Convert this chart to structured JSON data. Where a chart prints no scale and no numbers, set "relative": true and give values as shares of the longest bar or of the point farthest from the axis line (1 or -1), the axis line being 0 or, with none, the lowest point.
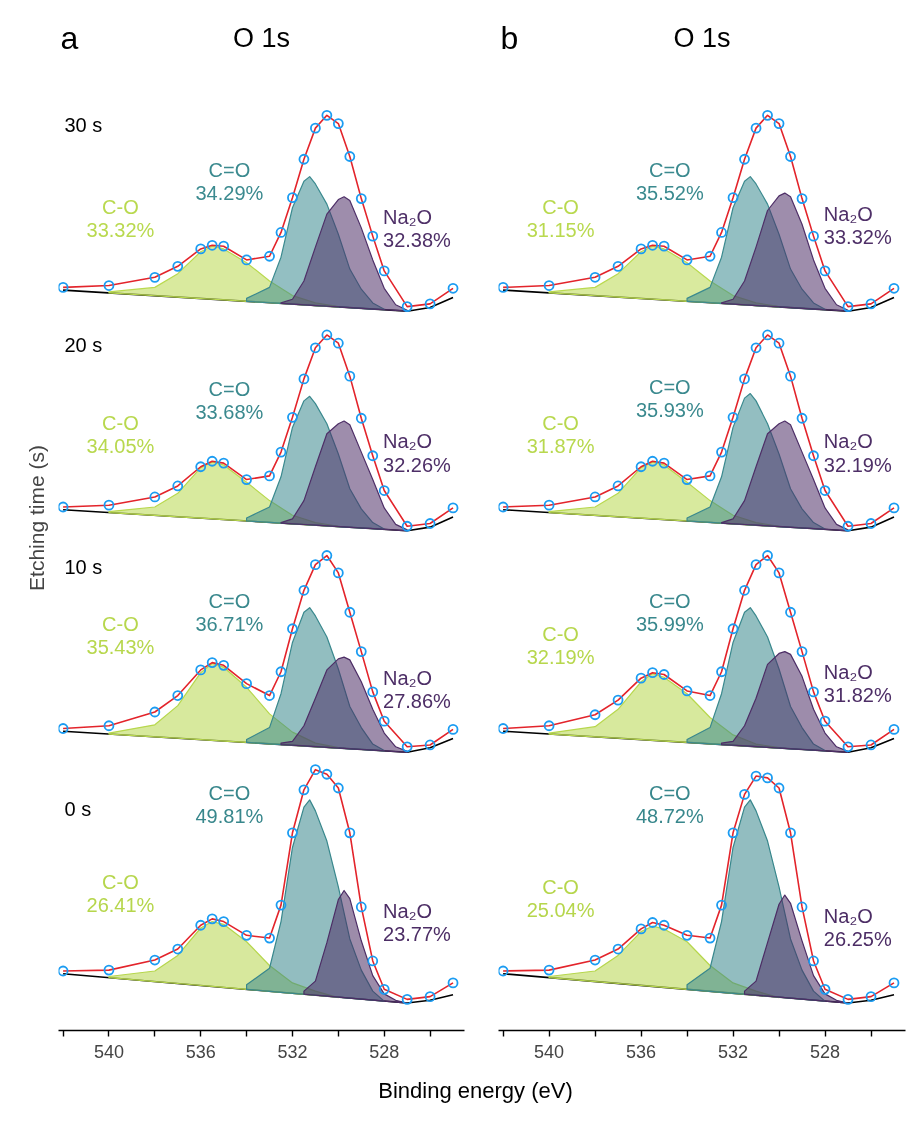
{
  "chart_data": [
    {
      "type": "line",
      "relative": true,
      "title": "O 1s",
      "xlabel": "Binding energy (eV)",
      "ylabel": "Etching time (s)",
      "xlim": [
        542.2,
        524.5
      ],
      "xticks": [
        {
          "value": 542,
          "label": null
        },
        540,
        {
          "value": 538,
          "label": null
        },
        536,
        {
          "value": 534,
          "label": null
        },
        532,
        {
          "value": 530,
          "label": null
        },
        528,
        {
          "value": 526,
          "label": null
        }
      ],
      "tick_labels": "x",
      "annotations": [
        "a",
        "30 s",
        "20 s",
        "10 s",
        "0 s"
      ],
      "series": [
        {
          "color": "#000000",
          "x": [
            542,
            527,
            526,
            525
          ],
          "values": [
            0.809,
            0.786,
            0.79,
            0.801
          ]
        },
        {
          "type": "area",
          "name": "C-O\n33.32%",
          "color": "#b9d94f",
          "x": [
            540,
            538,
            537,
            536,
            535.5,
            535,
            534,
            533,
            532,
            531,
            530
          ],
          "values": [
            0.807,
            0.812,
            0.827,
            0.851,
            0.857,
            0.854,
            0.839,
            0.819,
            0.803,
            0.795,
            0.791
          ]
        },
        {
          "type": "area",
          "name": "C=O\n34.29%",
          "color": "#3b8a8f",
          "x": [
            534,
            533,
            532.5,
            532,
            531.5,
            531.25,
            531,
            530.5,
            530,
            529.5,
            529,
            528.5,
            528
          ],
          "values": [
            0.8,
            0.812,
            0.845,
            0.899,
            0.928,
            0.933,
            0.925,
            0.903,
            0.87,
            0.832,
            0.81,
            0.795,
            0.788
          ]
        },
        {
          "type": "area",
          "name": "Na₂O\n32.38%",
          "color": "#4f3068",
          "x": [
            532.5,
            532,
            531.5,
            531,
            530.5,
            530,
            529.75,
            529.5,
            529,
            528.5,
            528,
            527.5,
            527
          ],
          "values": [
            0.795,
            0.799,
            0.819,
            0.856,
            0.892,
            0.908,
            0.911,
            0.907,
            0.877,
            0.842,
            0.811,
            0.793,
            0.787
          ]
        },
        {
          "color": "#e3242b",
          "x": [
            542,
            540,
            538,
            537,
            536,
            535.5,
            535,
            534,
            533,
            532.5,
            532,
            531.5,
            531,
            530.5,
            530,
            529.5,
            529,
            528.5,
            528,
            527,
            526,
            525
          ],
          "values": [
            0.812,
            0.814,
            0.823,
            0.835,
            0.854,
            0.858,
            0.857,
            0.842,
            0.846,
            0.872,
            0.91,
            0.952,
            0.986,
            1.0,
            0.991,
            0.955,
            0.909,
            0.868,
            0.83,
            0.791,
            0.794,
            0.811
          ]
        },
        {
          "type": "scatter",
          "color": "#1b9cf2",
          "x": [
            542,
            540,
            538,
            537,
            536,
            535.5,
            535,
            534,
            533,
            532.5,
            532,
            531.5,
            531,
            530.5,
            530,
            529.5,
            529,
            528.5,
            528,
            527,
            526,
            525
          ],
          "values": [
            0.812,
            0.814,
            0.823,
            0.835,
            0.854,
            0.858,
            0.857,
            0.842,
            0.846,
            0.872,
            0.91,
            0.952,
            0.986,
            1.0,
            0.991,
            0.955,
            0.909,
            0.868,
            0.83,
            0.791,
            0.794,
            0.811
          ]
        },
        {
          "color": "#000000",
          "x": [
            542,
            527,
            526,
            525
          ],
          "values": [
            0.569,
            0.546,
            0.55,
            0.561
          ]
        },
        {
          "type": "area",
          "name": "C-O\n34.05%",
          "color": "#b8d84e",
          "x": [
            540,
            538,
            537,
            536,
            535.5,
            535,
            534,
            533,
            532,
            531,
            530
          ],
          "values": [
            0.567,
            0.572,
            0.587,
            0.615,
            0.621,
            0.618,
            0.599,
            0.579,
            0.563,
            0.555,
            0.551
          ]
        },
        {
          "type": "area",
          "name": "C=O\n33.68%",
          "color": "#3a898e",
          "x": [
            534,
            533,
            532.5,
            532,
            531.5,
            531.25,
            531,
            530.5,
            530,
            529.5,
            529,
            528.5,
            528
          ],
          "values": [
            0.56,
            0.572,
            0.605,
            0.659,
            0.688,
            0.693,
            0.685,
            0.663,
            0.63,
            0.592,
            0.57,
            0.555,
            0.548
          ]
        },
        {
          "type": "area",
          "name": "Na₂O\n32.26%",
          "color": "#4e2f67",
          "x": [
            532.5,
            532,
            531.5,
            531,
            530.5,
            530,
            529.75,
            529.5,
            529,
            528.5,
            528,
            527.5,
            527
          ],
          "values": [
            0.555,
            0.559,
            0.579,
            0.616,
            0.652,
            0.663,
            0.666,
            0.662,
            0.632,
            0.602,
            0.571,
            0.553,
            0.547
          ]
        },
        {
          "color": "#e3242b",
          "x": [
            542,
            540,
            538,
            537,
            536,
            535.5,
            535,
            534,
            533,
            532.5,
            532,
            531.5,
            531,
            530.5,
            530,
            529.5,
            529,
            528.5,
            528,
            527,
            526,
            525
          ],
          "values": [
            0.572,
            0.574,
            0.583,
            0.595,
            0.616,
            0.622,
            0.62,
            0.602,
            0.606,
            0.632,
            0.67,
            0.712,
            0.746,
            0.76,
            0.751,
            0.715,
            0.669,
            0.628,
            0.59,
            0.551,
            0.554,
            0.571
          ]
        },
        {
          "type": "scatter",
          "color": "#1b9cf2",
          "x": [
            542,
            540,
            538,
            537,
            536,
            535.5,
            535,
            534,
            533,
            532.5,
            532,
            531.5,
            531,
            530.5,
            530,
            529.5,
            529,
            528.5,
            528,
            527,
            526,
            525
          ],
          "values": [
            0.572,
            0.574,
            0.583,
            0.595,
            0.616,
            0.622,
            0.62,
            0.602,
            0.606,
            0.632,
            0.67,
            0.712,
            0.746,
            0.76,
            0.751,
            0.715,
            0.669,
            0.628,
            0.59,
            0.551,
            0.554,
            0.571
          ]
        },
        {
          "color": "#000000",
          "x": [
            542,
            527,
            526,
            525
          ],
          "values": [
            0.327,
            0.304,
            0.309,
            0.319
          ]
        },
        {
          "type": "area",
          "name": "C-O\n35.43%",
          "color": "#b7d74d",
          "x": [
            540,
            538,
            537,
            536,
            535.5,
            535,
            534,
            533,
            532,
            531,
            530
          ],
          "values": [
            0.325,
            0.334,
            0.355,
            0.391,
            0.401,
            0.397,
            0.375,
            0.346,
            0.326,
            0.314,
            0.309
          ]
        },
        {
          "type": "area",
          "name": "C=O\n36.71%",
          "color": "#39888d",
          "x": [
            534,
            533,
            532.5,
            532,
            531.5,
            531.25,
            531,
            530.5,
            530,
            529.5,
            529,
            528.5,
            528
          ],
          "values": [
            0.318,
            0.331,
            0.368,
            0.424,
            0.457,
            0.462,
            0.453,
            0.43,
            0.395,
            0.354,
            0.331,
            0.313,
            0.306
          ]
        },
        {
          "type": "area",
          "name": "Na₂O\n27.86%",
          "color": "#4d2e66",
          "x": [
            532.5,
            532,
            531.5,
            531,
            530.5,
            530,
            529.75,
            529.5,
            529,
            528.5,
            528,
            527.5,
            527
          ],
          "values": [
            0.314,
            0.316,
            0.333,
            0.363,
            0.394,
            0.406,
            0.408,
            0.405,
            0.381,
            0.351,
            0.325,
            0.31,
            0.305
          ]
        },
        {
          "color": "#e3242b",
          "x": [
            542,
            540,
            538,
            537,
            536,
            535.5,
            535,
            534,
            533,
            532.5,
            532,
            531.5,
            531,
            530.5,
            530,
            529.5,
            529,
            528.5,
            528,
            527,
            526,
            525
          ],
          "values": [
            0.33,
            0.333,
            0.348,
            0.366,
            0.394,
            0.402,
            0.399,
            0.379,
            0.366,
            0.392,
            0.439,
            0.481,
            0.509,
            0.519,
            0.5,
            0.457,
            0.414,
            0.37,
            0.338,
            0.31,
            0.312,
            0.329
          ]
        },
        {
          "type": "scatter",
          "color": "#1b9cf2",
          "x": [
            542,
            540,
            538,
            537,
            536,
            535.5,
            535,
            534,
            533,
            532.5,
            532,
            531.5,
            531,
            530.5,
            530,
            529.5,
            529,
            528.5,
            528,
            527,
            526,
            525
          ],
          "values": [
            0.33,
            0.333,
            0.348,
            0.366,
            0.394,
            0.402,
            0.399,
            0.379,
            0.366,
            0.392,
            0.439,
            0.481,
            0.509,
            0.519,
            0.5,
            0.457,
            0.414,
            0.37,
            0.338,
            0.31,
            0.312,
            0.329
          ]
        },
        {
          "color": "#000000",
          "x": [
            542,
            527,
            526,
            525
          ],
          "values": [
            0.062,
            0.03,
            0.033,
            0.039
          ]
        },
        {
          "type": "area",
          "name": "C-O\n26.41%",
          "color": "#b6d64c",
          "x": [
            540,
            538,
            537,
            536,
            535.5,
            535,
            534,
            533,
            532,
            531,
            530
          ],
          "values": [
            0.059,
            0.065,
            0.082,
            0.112,
            0.119,
            0.116,
            0.097,
            0.071,
            0.052,
            0.043,
            0.036
          ]
        },
        {
          "type": "area",
          "name": "C=O\n49.81%",
          "color": "#38878c",
          "x": [
            534,
            533,
            532.5,
            532,
            531.5,
            531.25,
            531,
            530.5,
            530,
            529.5,
            529,
            528.5,
            528
          ],
          "values": [
            0.05,
            0.068,
            0.119,
            0.2,
            0.244,
            0.252,
            0.24,
            0.207,
            0.157,
            0.1,
            0.066,
            0.043,
            0.032
          ]
        },
        {
          "type": "area",
          "name": "Na₂O\n23.77%",
          "color": "#4c2d65",
          "x": [
            531.5,
            531,
            530.5,
            530,
            529.75,
            529.5,
            529,
            528.5,
            528,
            527.5,
            527
          ],
          "values": [
            0.043,
            0.054,
            0.096,
            0.143,
            0.153,
            0.144,
            0.098,
            0.06,
            0.04,
            0.033,
            0.03
          ]
        },
        {
          "color": "#e3242b",
          "x": [
            542,
            540,
            538,
            537,
            536,
            535.5,
            535,
            534,
            533,
            532.5,
            532,
            531.5,
            531,
            530.5,
            530,
            529.5,
            529,
            528.5,
            528,
            527,
            526,
            525
          ],
          "values": [
            0.065,
            0.066,
            0.077,
            0.089,
            0.115,
            0.122,
            0.119,
            0.104,
            0.101,
            0.137,
            0.216,
            0.263,
            0.285,
            0.28,
            0.265,
            0.216,
            0.135,
            0.076,
            0.045,
            0.034,
            0.037,
            0.052
          ]
        },
        {
          "type": "scatter",
          "color": "#1b9cf2",
          "x": [
            542,
            540,
            538,
            537,
            536,
            535.5,
            535,
            534,
            533,
            532.5,
            532,
            531.5,
            531,
            530.5,
            530,
            529.5,
            529,
            528.5,
            528,
            527,
            526,
            525
          ],
          "values": [
            0.065,
            0.066,
            0.077,
            0.089,
            0.115,
            0.122,
            0.119,
            0.104,
            0.101,
            0.137,
            0.216,
            0.263,
            0.285,
            0.28,
            0.265,
            0.216,
            0.135,
            0.076,
            0.045,
            0.034,
            0.037,
            0.052
          ]
        }
      ]
    },
    {
      "type": "line",
      "relative": true,
      "title": "O 1s",
      "xlim": [
        542.2,
        524.5
      ],
      "xticks": [
        {
          "value": 542,
          "label": null
        },
        540,
        {
          "value": 538,
          "label": null
        },
        536,
        {
          "value": 534,
          "label": null
        },
        532,
        {
          "value": 530,
          "label": null
        },
        528,
        {
          "value": 526,
          "label": null
        }
      ],
      "tick_labels": "x",
      "annotations": [
        "b"
      ],
      "series": [
        {
          "color": "#000000",
          "x": [
            542,
            527,
            526,
            525
          ],
          "values": [
            0.809,
            0.786,
            0.79,
            0.801
          ]
        },
        {
          "type": "area",
          "name": "C-O\n31.15%",
          "color": "#b9d94f",
          "x": [
            540,
            538,
            537,
            536,
            535.5,
            535,
            534,
            533,
            532,
            531,
            530
          ],
          "values": [
            0.807,
            0.812,
            0.827,
            0.851,
            0.857,
            0.854,
            0.839,
            0.819,
            0.803,
            0.795,
            0.791
          ]
        },
        {
          "type": "area",
          "name": "C=O\n35.52%",
          "color": "#3b8a8f",
          "x": [
            534,
            533,
            532.5,
            532,
            531.5,
            531.25,
            531,
            530.5,
            530,
            529.5,
            529,
            528.5,
            528
          ],
          "values": [
            0.8,
            0.812,
            0.845,
            0.899,
            0.928,
            0.933,
            0.925,
            0.903,
            0.87,
            0.832,
            0.81,
            0.795,
            0.788
          ]
        },
        {
          "type": "area",
          "name": "Na₂O\n33.32%",
          "color": "#4f3068",
          "x": [
            532.5,
            532,
            531.5,
            531,
            530.5,
            530,
            529.75,
            529.5,
            529,
            528.5,
            528,
            527.5,
            527
          ],
          "values": [
            0.795,
            0.799,
            0.819,
            0.856,
            0.896,
            0.912,
            0.915,
            0.911,
            0.881,
            0.842,
            0.811,
            0.793,
            0.787
          ]
        },
        {
          "color": "#e3242b",
          "x": [
            542,
            540,
            538,
            537,
            536,
            535.5,
            535,
            534,
            533,
            532.5,
            532,
            531.5,
            531,
            530.5,
            530,
            529.5,
            529,
            528.5,
            528,
            527,
            526,
            525
          ],
          "values": [
            0.812,
            0.814,
            0.823,
            0.835,
            0.854,
            0.858,
            0.857,
            0.842,
            0.846,
            0.872,
            0.91,
            0.952,
            0.986,
            1.0,
            0.991,
            0.955,
            0.909,
            0.868,
            0.83,
            0.791,
            0.794,
            0.811
          ]
        },
        {
          "type": "scatter",
          "color": "#1b9cf2",
          "x": [
            542,
            540,
            538,
            537,
            536,
            535.5,
            535,
            534,
            533,
            532.5,
            532,
            531.5,
            531,
            530.5,
            530,
            529.5,
            529,
            528.5,
            528,
            527,
            526,
            525
          ],
          "values": [
            0.812,
            0.814,
            0.823,
            0.835,
            0.854,
            0.858,
            0.857,
            0.842,
            0.846,
            0.872,
            0.91,
            0.952,
            0.986,
            1.0,
            0.991,
            0.955,
            0.909,
            0.868,
            0.83,
            0.791,
            0.794,
            0.811
          ]
        },
        {
          "color": "#000000",
          "x": [
            542,
            527,
            526,
            525
          ],
          "values": [
            0.569,
            0.546,
            0.55,
            0.561
          ]
        },
        {
          "type": "area",
          "name": "C-O\n31.87%",
          "color": "#b8d84e",
          "x": [
            540,
            538,
            537,
            536,
            535.5,
            535,
            534,
            533,
            532,
            531,
            530
          ],
          "values": [
            0.567,
            0.572,
            0.587,
            0.615,
            0.621,
            0.618,
            0.599,
            0.579,
            0.563,
            0.555,
            0.551
          ]
        },
        {
          "type": "area",
          "name": "C=O\n35.93%",
          "color": "#3a898e",
          "x": [
            534,
            533,
            532.5,
            532,
            531.5,
            531.25,
            531,
            530.5,
            530,
            529.5,
            529,
            528.5,
            528
          ],
          "values": [
            0.56,
            0.572,
            0.605,
            0.659,
            0.691,
            0.696,
            0.688,
            0.663,
            0.63,
            0.592,
            0.57,
            0.555,
            0.548
          ]
        },
        {
          "type": "area",
          "name": "Na₂O\n32.19%",
          "color": "#4e2f67",
          "x": [
            532.5,
            532,
            531.5,
            531,
            530.5,
            530,
            529.75,
            529.5,
            529,
            528.5,
            528,
            527.5,
            527
          ],
          "values": [
            0.555,
            0.559,
            0.579,
            0.616,
            0.652,
            0.663,
            0.666,
            0.662,
            0.632,
            0.602,
            0.571,
            0.553,
            0.547
          ]
        },
        {
          "color": "#e3242b",
          "x": [
            542,
            540,
            538,
            537,
            536,
            535.5,
            535,
            534,
            533,
            532.5,
            532,
            531.5,
            531,
            530.5,
            530,
            529.5,
            529,
            528.5,
            528,
            527,
            526,
            525
          ],
          "values": [
            0.572,
            0.574,
            0.583,
            0.595,
            0.616,
            0.622,
            0.62,
            0.602,
            0.606,
            0.632,
            0.67,
            0.712,
            0.746,
            0.76,
            0.751,
            0.715,
            0.669,
            0.628,
            0.59,
            0.551,
            0.554,
            0.571
          ]
        },
        {
          "type": "scatter",
          "color": "#1b9cf2",
          "x": [
            542,
            540,
            538,
            537,
            536,
            535.5,
            535,
            534,
            533,
            532.5,
            532,
            531.5,
            531,
            530.5,
            530,
            529.5,
            529,
            528.5,
            528,
            527,
            526,
            525
          ],
          "values": [
            0.572,
            0.574,
            0.583,
            0.595,
            0.616,
            0.622,
            0.62,
            0.602,
            0.606,
            0.632,
            0.67,
            0.712,
            0.746,
            0.76,
            0.751,
            0.715,
            0.669,
            0.628,
            0.59,
            0.551,
            0.554,
            0.571
          ]
        },
        {
          "color": "#000000",
          "x": [
            542,
            527,
            526,
            525
          ],
          "values": [
            0.327,
            0.304,
            0.309,
            0.319
          ]
        },
        {
          "type": "area",
          "name": "C-O\n32.19%",
          "color": "#b7d74d",
          "x": [
            540,
            538,
            537,
            536,
            535.5,
            535,
            534,
            533,
            532,
            531,
            530
          ],
          "values": [
            0.325,
            0.332,
            0.351,
            0.381,
            0.39,
            0.386,
            0.368,
            0.342,
            0.323,
            0.313,
            0.309
          ]
        },
        {
          "type": "area",
          "name": "C=O\n35.99%",
          "color": "#39888d",
          "x": [
            534,
            533,
            532.5,
            532,
            531.5,
            531.25,
            531,
            530.5,
            530,
            529.5,
            529,
            528.5,
            528
          ],
          "values": [
            0.318,
            0.331,
            0.368,
            0.424,
            0.457,
            0.462,
            0.453,
            0.43,
            0.395,
            0.354,
            0.331,
            0.313,
            0.306
          ]
        },
        {
          "type": "area",
          "name": "Na₂O\n31.82%",
          "color": "#4d2e66",
          "x": [
            532.5,
            532,
            531.5,
            531,
            530.5,
            530,
            529.75,
            529.5,
            529,
            528.5,
            528,
            527.5,
            527
          ],
          "values": [
            0.314,
            0.316,
            0.333,
            0.363,
            0.4,
            0.412,
            0.414,
            0.411,
            0.387,
            0.351,
            0.325,
            0.31,
            0.305
          ]
        },
        {
          "color": "#e3242b",
          "x": [
            542,
            540,
            538,
            537,
            536,
            535.5,
            535,
            534,
            533,
            532.5,
            532,
            531.5,
            531,
            530.5,
            530,
            529.5,
            529,
            528.5,
            528,
            527,
            526,
            525
          ],
          "values": [
            0.33,
            0.333,
            0.345,
            0.361,
            0.385,
            0.391,
            0.389,
            0.371,
            0.366,
            0.392,
            0.439,
            0.481,
            0.509,
            0.519,
            0.5,
            0.457,
            0.414,
            0.37,
            0.338,
            0.31,
            0.312,
            0.329
          ]
        },
        {
          "type": "scatter",
          "color": "#1b9cf2",
          "x": [
            542,
            540,
            538,
            537,
            536,
            535.5,
            535,
            534,
            533,
            532.5,
            532,
            531.5,
            531,
            530.5,
            530,
            529.5,
            529,
            528.5,
            528,
            527,
            526,
            525
          ],
          "values": [
            0.33,
            0.333,
            0.345,
            0.361,
            0.385,
            0.391,
            0.389,
            0.371,
            0.366,
            0.392,
            0.439,
            0.481,
            0.509,
            0.519,
            0.5,
            0.457,
            0.414,
            0.37,
            0.338,
            0.31,
            0.312,
            0.329
          ]
        },
        {
          "color": "#000000",
          "x": [
            542,
            527,
            526,
            525
          ],
          "values": [
            0.062,
            0.03,
            0.033,
            0.039
          ]
        },
        {
          "type": "area",
          "name": "C-O\n25.04%",
          "color": "#b6d64c",
          "x": [
            540,
            538,
            537,
            536,
            535.5,
            535,
            534,
            533,
            532,
            531,
            530
          ],
          "values": [
            0.059,
            0.065,
            0.082,
            0.108,
            0.114,
            0.111,
            0.097,
            0.071,
            0.052,
            0.043,
            0.036
          ]
        },
        {
          "type": "area",
          "name": "C=O\n48.72%",
          "color": "#38878c",
          "x": [
            534,
            533,
            532.5,
            532,
            531.5,
            531.25,
            531,
            530.5,
            530,
            529.5,
            529,
            528.5,
            528
          ],
          "values": [
            0.05,
            0.068,
            0.119,
            0.2,
            0.244,
            0.252,
            0.24,
            0.207,
            0.157,
            0.1,
            0.066,
            0.043,
            0.032
          ]
        },
        {
          "type": "area",
          "name": "Na₂O\n26.25%",
          "color": "#4c2d65",
          "x": [
            531.5,
            531,
            530.5,
            530,
            529.75,
            529.5,
            529,
            528.5,
            528,
            527.5,
            527
          ],
          "values": [
            0.043,
            0.054,
            0.096,
            0.138,
            0.148,
            0.139,
            0.098,
            0.06,
            0.04,
            0.033,
            0.03
          ]
        },
        {
          "color": "#e3242b",
          "x": [
            542,
            540,
            538,
            537,
            536,
            535.5,
            535,
            534,
            533,
            532.5,
            532,
            531.5,
            531,
            530.5,
            530,
            529.5,
            529,
            528.5,
            528,
            527,
            526,
            525
          ],
          "values": [
            0.065,
            0.066,
            0.077,
            0.089,
            0.111,
            0.118,
            0.115,
            0.104,
            0.101,
            0.137,
            0.216,
            0.258,
            0.278,
            0.276,
            0.265,
            0.216,
            0.135,
            0.076,
            0.045,
            0.034,
            0.037,
            0.052
          ]
        },
        {
          "type": "scatter",
          "color": "#1b9cf2",
          "x": [
            542,
            540,
            538,
            537,
            536,
            535.5,
            535,
            534,
            533,
            532.5,
            532,
            531.5,
            531,
            530.5,
            530,
            529.5,
            529,
            528.5,
            528,
            527,
            526,
            525
          ],
          "values": [
            0.065,
            0.066,
            0.077,
            0.089,
            0.111,
            0.118,
            0.115,
            0.104,
            0.101,
            0.137,
            0.216,
            0.258,
            0.278,
            0.276,
            0.265,
            0.216,
            0.135,
            0.076,
            0.045,
            0.034,
            0.037,
            0.052
          ]
        }
      ]
    }
  ]
}
